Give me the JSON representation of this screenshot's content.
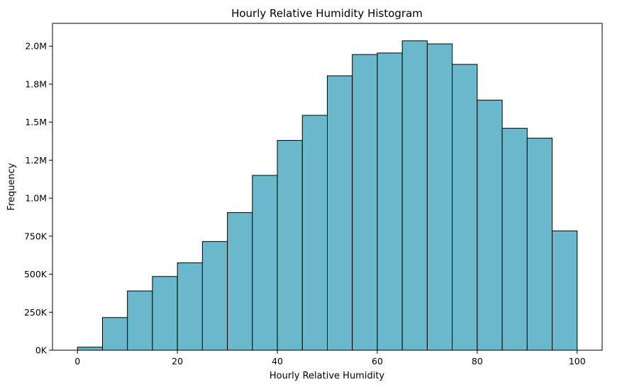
{
  "chart_data": {
    "type": "bar",
    "title": "Hourly Relative Humidity Histogram",
    "xlabel": "Hourly Relative Humidity",
    "ylabel": "Frequency",
    "bin_edges": [
      0,
      5,
      10,
      15,
      20,
      25,
      30,
      35,
      40,
      45,
      50,
      55,
      60,
      65,
      70,
      75,
      80,
      85,
      90,
      95,
      100
    ],
    "values": [
      20000,
      215000,
      390000,
      485000,
      575000,
      715000,
      905000,
      1150000,
      1380000,
      1545000,
      1805000,
      1945000,
      1955000,
      2035000,
      2015000,
      1880000,
      1645000,
      1460000,
      1395000,
      785000
    ],
    "xlim": [
      -5,
      105
    ],
    "ylim": [
      0,
      2150000
    ],
    "x_ticks": [
      0,
      20,
      40,
      60,
      80,
      100
    ],
    "x_tick_labels": [
      "0",
      "20",
      "40",
      "60",
      "80",
      "100"
    ],
    "y_ticks": [
      0,
      250000,
      500000,
      750000,
      1000000,
      1250000,
      1500000,
      1750000,
      2000000
    ],
    "y_tick_labels": [
      "0K",
      "250K",
      "500K",
      "750K",
      "1.0M",
      "1.2M",
      "1.5M",
      "1.8M",
      "2.0M"
    ],
    "grid": false,
    "colors": {
      "bar_fill": "#6ab8cc",
      "bar_edge": "#000000"
    }
  }
}
